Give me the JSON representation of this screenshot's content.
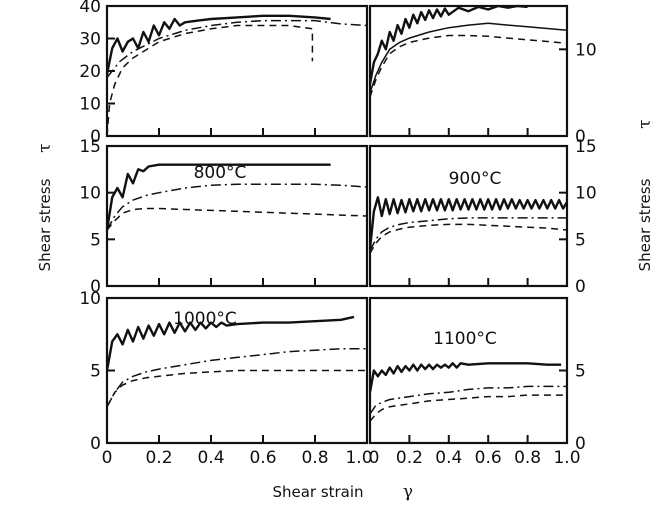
{
  "figure": {
    "y_title": "Shear stress",
    "y_symbol": "τ",
    "x_title": "Shear strain",
    "x_symbol": "γ"
  },
  "chart_data": [
    {
      "type": "line",
      "label": "",
      "title": "",
      "xlim": [
        0,
        1.0
      ],
      "ylim": [
        0,
        40
      ],
      "yticks": [
        0,
        10,
        20,
        30,
        40
      ],
      "yticks_side": "left",
      "xticks": [
        0,
        0.2,
        0.4,
        0.6,
        0.8,
        1.0
      ],
      "series": [
        {
          "style": "solid",
          "x": [
            0.0,
            0.02,
            0.04,
            0.06,
            0.08,
            0.1,
            0.12,
            0.14,
            0.16,
            0.18,
            0.2,
            0.22,
            0.24,
            0.26,
            0.28,
            0.3,
            0.35,
            0.4,
            0.5,
            0.6,
            0.7,
            0.8,
            0.86
          ],
          "y": [
            19,
            27,
            30,
            26,
            29,
            30,
            27,
            32,
            29,
            34,
            31,
            35,
            33,
            36,
            34,
            35,
            35.5,
            36,
            36.5,
            37,
            37,
            36.5,
            36
          ]
        },
        {
          "style": "dashdot",
          "x": [
            0.0,
            0.02,
            0.05,
            0.1,
            0.2,
            0.3,
            0.4,
            0.5,
            0.6,
            0.7,
            0.8,
            0.9,
            1.0
          ],
          "y": [
            18,
            20,
            23,
            26,
            30,
            32.5,
            34,
            35,
            35.5,
            35.5,
            35.5,
            34.5,
            34
          ]
        },
        {
          "style": "dashed",
          "x": [
            0.0,
            0.01,
            0.03,
            0.06,
            0.1,
            0.2,
            0.3,
            0.4,
            0.5,
            0.6,
            0.7,
            0.79,
            0.79
          ],
          "y": [
            0,
            10,
            16,
            21,
            24,
            29,
            31.5,
            33,
            34,
            34,
            34,
            33,
            23
          ]
        }
      ]
    },
    {
      "type": "line",
      "label": "",
      "title": "",
      "xlim": [
        0,
        1.0
      ],
      "ylim": [
        0,
        15
      ],
      "yticks": [
        0,
        10
      ],
      "yticks_side": "right",
      "xticks": [
        0,
        0.2,
        0.4,
        0.6,
        0.8,
        1.0
      ],
      "series": [
        {
          "style": "solid",
          "x": [
            0.0,
            0.02,
            0.04,
            0.06,
            0.08,
            0.1,
            0.12,
            0.14,
            0.16,
            0.18,
            0.2,
            0.22,
            0.24,
            0.26,
            0.28,
            0.3,
            0.32,
            0.34,
            0.36,
            0.38,
            0.4,
            0.45,
            0.5,
            0.55,
            0.6,
            0.65,
            0.7,
            0.75,
            0.8
          ],
          "y": [
            6,
            8.5,
            9.5,
            11,
            10,
            12,
            11,
            12.8,
            11.8,
            13.5,
            12.5,
            14,
            13,
            14.3,
            13.4,
            14.5,
            13.6,
            14.6,
            13.8,
            14.7,
            14,
            14.8,
            14.4,
            14.9,
            14.6,
            15,
            14.8,
            15,
            14.9
          ]
        },
        {
          "style": "solid-thin",
          "x": [
            0.0,
            0.03,
            0.06,
            0.1,
            0.15,
            0.2,
            0.3,
            0.4,
            0.5,
            0.6,
            0.7,
            0.8,
            0.9,
            1.0
          ],
          "y": [
            5,
            7,
            8.5,
            10,
            10.8,
            11.3,
            12,
            12.5,
            12.8,
            13,
            12.8,
            12.6,
            12.4,
            12.2
          ]
        },
        {
          "style": "dashed",
          "x": [
            0.0,
            0.03,
            0.06,
            0.1,
            0.15,
            0.2,
            0.3,
            0.4,
            0.5,
            0.6,
            0.7,
            0.8,
            0.9,
            1.0
          ],
          "y": [
            4.5,
            6.5,
            8,
            9.5,
            10.3,
            10.8,
            11.3,
            11.6,
            11.6,
            11.5,
            11.3,
            11.1,
            10.9,
            10.7
          ]
        }
      ]
    },
    {
      "type": "line",
      "label": "800°C",
      "title": "",
      "xlim": [
        0,
        1.0
      ],
      "ylim": [
        0,
        15
      ],
      "yticks": [
        0,
        5,
        10,
        15
      ],
      "yticks_side": "left",
      "xticks": [
        0,
        0.2,
        0.4,
        0.6,
        0.8,
        1.0
      ],
      "series": [
        {
          "style": "solid",
          "x": [
            0.0,
            0.02,
            0.04,
            0.06,
            0.08,
            0.1,
            0.12,
            0.14,
            0.16,
            0.2,
            0.3,
            0.4,
            0.5,
            0.6,
            0.7,
            0.8,
            0.86
          ],
          "y": [
            6,
            9.5,
            10.5,
            9.5,
            12,
            11,
            12.5,
            12.3,
            12.8,
            13,
            13,
            13,
            13,
            13,
            13,
            13,
            13
          ]
        },
        {
          "style": "dashdot",
          "x": [
            0.0,
            0.03,
            0.06,
            0.1,
            0.15,
            0.2,
            0.3,
            0.4,
            0.5,
            0.6,
            0.7,
            0.8,
            0.9,
            1.0
          ],
          "y": [
            6,
            7.5,
            8.5,
            9.2,
            9.7,
            10,
            10.5,
            10.8,
            10.9,
            10.9,
            10.9,
            10.9,
            10.8,
            10.6
          ]
        },
        {
          "style": "dashed",
          "x": [
            0.0,
            0.03,
            0.06,
            0.1,
            0.15,
            0.2,
            0.3,
            0.4,
            0.5,
            0.6,
            0.7,
            0.8,
            0.9,
            1.0
          ],
          "y": [
            6,
            7,
            7.8,
            8.2,
            8.3,
            8.3,
            8.2,
            8.1,
            8,
            7.9,
            7.8,
            7.7,
            7.6,
            7.5
          ]
        }
      ]
    },
    {
      "type": "line",
      "label": "900°C",
      "title": "",
      "xlim": [
        0,
        1.0
      ],
      "ylim": [
        0,
        15
      ],
      "yticks": [
        0,
        5,
        10,
        15
      ],
      "yticks_side": "right",
      "xticks": [
        0,
        0.2,
        0.4,
        0.6,
        0.8,
        1.0
      ],
      "series": [
        {
          "style": "solid",
          "x": [
            0.0,
            0.02,
            0.04,
            0.06,
            0.08,
            0.1,
            0.12,
            0.14,
            0.16,
            0.18,
            0.2,
            0.22,
            0.24,
            0.26,
            0.28,
            0.3,
            0.32,
            0.34,
            0.36,
            0.38,
            0.4,
            0.42,
            0.44,
            0.46,
            0.48,
            0.5,
            0.52,
            0.54,
            0.56,
            0.58,
            0.6,
            0.62,
            0.64,
            0.66,
            0.68,
            0.7,
            0.72,
            0.74,
            0.76,
            0.78,
            0.8,
            0.82,
            0.84,
            0.86,
            0.88,
            0.9,
            0.92,
            0.94,
            0.96,
            0.98,
            1.0
          ],
          "y": [
            4,
            8,
            9.5,
            7.5,
            9.3,
            7.7,
            9.3,
            7.8,
            9.2,
            7.9,
            9.3,
            8,
            9.3,
            8,
            9.3,
            8.1,
            9.3,
            8.1,
            9.3,
            8.1,
            9.3,
            8.1,
            9.3,
            8.2,
            9.3,
            8.2,
            9.3,
            8.2,
            9.3,
            8.2,
            9.3,
            8.2,
            9.3,
            8.2,
            9.3,
            8.3,
            9.3,
            8.3,
            9.2,
            8.3,
            9.2,
            8.3,
            9.2,
            8.3,
            9.2,
            8.3,
            9.2,
            8.3,
            9.2,
            8.3,
            9
          ]
        },
        {
          "style": "dashdot",
          "x": [
            0.0,
            0.03,
            0.06,
            0.1,
            0.15,
            0.2,
            0.3,
            0.4,
            0.5,
            0.6,
            0.7,
            0.8,
            0.9,
            1.0
          ],
          "y": [
            3.8,
            5,
            5.8,
            6.3,
            6.6,
            6.8,
            7,
            7.2,
            7.3,
            7.3,
            7.3,
            7.3,
            7.3,
            7.3
          ]
        },
        {
          "style": "dashed",
          "x": [
            0.0,
            0.03,
            0.06,
            0.1,
            0.15,
            0.2,
            0.3,
            0.4,
            0.5,
            0.6,
            0.7,
            0.8,
            0.9,
            1.0
          ],
          "y": [
            3.5,
            4.6,
            5.3,
            5.8,
            6.1,
            6.3,
            6.5,
            6.6,
            6.6,
            6.5,
            6.4,
            6.3,
            6.2,
            6
          ]
        }
      ]
    },
    {
      "type": "line",
      "label": "1000°C",
      "title": "",
      "xlim": [
        0,
        1.0
      ],
      "ylim": [
        0,
        10
      ],
      "yticks": [
        0,
        5,
        10
      ],
      "yticks_side": "left",
      "xticks": [
        0,
        0.2,
        0.4,
        0.6,
        0.8,
        1.0
      ],
      "xticklabels": [
        "0",
        "0.2",
        "0.4",
        "0.6",
        "0.8",
        "1.0"
      ],
      "series": [
        {
          "style": "solid",
          "x": [
            0.0,
            0.02,
            0.04,
            0.06,
            0.08,
            0.1,
            0.12,
            0.14,
            0.16,
            0.18,
            0.2,
            0.22,
            0.24,
            0.26,
            0.28,
            0.3,
            0.32,
            0.34,
            0.36,
            0.38,
            0.4,
            0.42,
            0.44,
            0.46,
            0.5,
            0.6,
            0.7,
            0.8,
            0.9,
            0.95
          ],
          "y": [
            5,
            7,
            7.5,
            6.8,
            7.8,
            7,
            8,
            7.2,
            8.1,
            7.4,
            8.2,
            7.5,
            8.3,
            7.6,
            8.3,
            7.7,
            8.3,
            7.8,
            8.3,
            7.9,
            8.3,
            8,
            8.3,
            8.1,
            8.2,
            8.3,
            8.3,
            8.4,
            8.5,
            8.7
          ]
        },
        {
          "style": "dashdot",
          "x": [
            0.0,
            0.03,
            0.06,
            0.1,
            0.15,
            0.2,
            0.3,
            0.4,
            0.5,
            0.6,
            0.7,
            0.8,
            0.9,
            1.0
          ],
          "y": [
            2.5,
            3.5,
            4.2,
            4.6,
            4.9,
            5.1,
            5.4,
            5.7,
            5.9,
            6.1,
            6.3,
            6.4,
            6.5,
            6.5
          ]
        },
        {
          "style": "dashed",
          "x": [
            0.0,
            0.03,
            0.06,
            0.1,
            0.15,
            0.2,
            0.3,
            0.4,
            0.5,
            0.6,
            0.7,
            0.8,
            0.9,
            1.0
          ],
          "y": [
            2.5,
            3.5,
            4,
            4.3,
            4.5,
            4.6,
            4.8,
            4.9,
            5,
            5,
            5,
            5,
            5,
            5
          ]
        }
      ]
    },
    {
      "type": "line",
      "label": "1100°C",
      "title": "",
      "xlim": [
        0,
        1.0
      ],
      "ylim": [
        0,
        10
      ],
      "yticks": [
        0,
        5
      ],
      "yticks_side": "right",
      "xticks": [
        0,
        0.2,
        0.4,
        0.6,
        0.8,
        1.0
      ],
      "xticklabels": [
        "0",
        "0.2",
        "0.4",
        "0.6",
        "0.8",
        "1.0"
      ],
      "series": [
        {
          "style": "solid",
          "x": [
            0.0,
            0.02,
            0.04,
            0.06,
            0.08,
            0.1,
            0.12,
            0.14,
            0.16,
            0.18,
            0.2,
            0.22,
            0.24,
            0.26,
            0.28,
            0.3,
            0.32,
            0.34,
            0.36,
            0.38,
            0.4,
            0.42,
            0.44,
            0.46,
            0.5,
            0.6,
            0.7,
            0.8,
            0.9,
            0.97
          ],
          "y": [
            3.5,
            5,
            4.6,
            5,
            4.7,
            5.2,
            4.8,
            5.3,
            4.9,
            5.3,
            5,
            5.4,
            5,
            5.4,
            5.1,
            5.4,
            5.1,
            5.4,
            5.2,
            5.4,
            5.2,
            5.5,
            5.2,
            5.5,
            5.4,
            5.5,
            5.5,
            5.5,
            5.4,
            5.4
          ]
        },
        {
          "style": "dashdot",
          "x": [
            0.0,
            0.03,
            0.06,
            0.1,
            0.15,
            0.2,
            0.3,
            0.4,
            0.5,
            0.6,
            0.7,
            0.8,
            0.9,
            1.0
          ],
          "y": [
            2,
            2.6,
            2.8,
            3,
            3.1,
            3.2,
            3.4,
            3.5,
            3.7,
            3.8,
            3.8,
            3.9,
            3.9,
            3.9
          ]
        },
        {
          "style": "dashed",
          "x": [
            0.0,
            0.03,
            0.06,
            0.1,
            0.15,
            0.2,
            0.3,
            0.4,
            0.5,
            0.6,
            0.7,
            0.8,
            0.9,
            1.0
          ],
          "y": [
            1.5,
            2,
            2.3,
            2.5,
            2.6,
            2.7,
            2.9,
            3,
            3.1,
            3.2,
            3.2,
            3.3,
            3.3,
            3.3
          ]
        }
      ]
    }
  ]
}
